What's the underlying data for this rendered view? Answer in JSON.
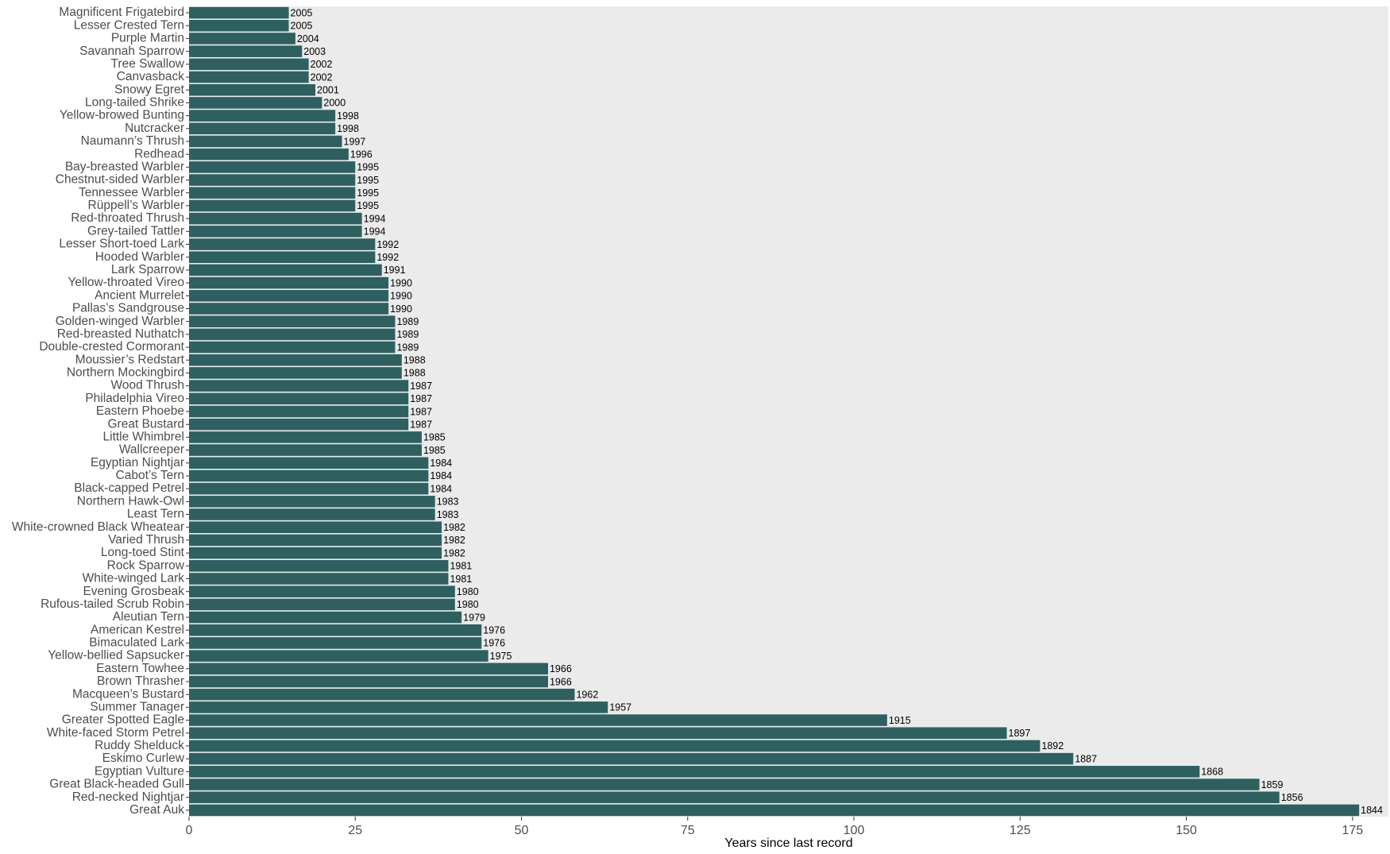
{
  "chart_data": {
    "type": "barh",
    "x_label": "Years since last record",
    "categories": [
      "Magnificent Frigatebird",
      "Lesser Crested Tern",
      "Purple Martin",
      "Savannah Sparrow",
      "Tree Swallow",
      "Canvasback",
      "Snowy Egret",
      "Long-tailed Shrike",
      "Yellow-browed Bunting",
      "Nutcracker",
      "Naumann’s Thrush",
      "Redhead",
      "Bay-breasted Warbler",
      "Chestnut-sided Warbler",
      "Tennessee Warbler",
      "Rüppell’s Warbler",
      "Red-throated Thrush",
      "Grey-tailed Tattler",
      "Lesser Short-toed Lark",
      "Hooded Warbler",
      "Lark Sparrow",
      "Yellow-throated Vireo",
      "Ancient Murrelet",
      "Pallas’s Sandgrouse",
      "Golden-winged Warbler",
      "Red-breasted Nuthatch",
      "Double-crested Cormorant",
      "Moussier’s Redstart",
      "Northern Mockingbird",
      "Wood Thrush",
      "Philadelphia Vireo",
      "Eastern Phoebe",
      "Great Bustard",
      "Little Whimbrel",
      "Wallcreeper",
      "Egyptian Nightjar",
      "Cabot’s Tern",
      "Black-capped Petrel",
      "Northern Hawk-Owl",
      "Least Tern",
      "White-crowned Black Wheatear",
      "Varied Thrush",
      "Long-toed Stint",
      "Rock Sparrow",
      "White-winged Lark",
      "Evening Grosbeak",
      "Rufous-tailed Scrub Robin",
      "Aleutian Tern",
      "American Kestrel",
      "Bimaculated Lark",
      "Yellow-bellied Sapsucker",
      "Eastern Towhee",
      "Brown Thrasher",
      "Macqueen’s Bustard",
      "Summer Tanager",
      "Greater Spotted Eagle",
      "White-faced Storm Petrel",
      "Ruddy Shelduck",
      "Eskimo Curlew",
      "Egyptian Vulture",
      "Great Black-headed Gull",
      "Red-necked Nightjar",
      "Great Auk"
    ],
    "values": [
      15,
      15,
      16,
      17,
      18,
      18,
      19,
      20,
      22,
      22,
      23,
      24,
      25,
      25,
      25,
      25,
      26,
      26,
      28,
      28,
      29,
      30,
      30,
      30,
      31,
      31,
      31,
      32,
      32,
      33,
      33,
      33,
      33,
      35,
      35,
      36,
      36,
      36,
      37,
      37,
      38,
      38,
      38,
      39,
      39,
      40,
      40,
      41,
      44,
      44,
      45,
      54,
      54,
      58,
      63,
      105,
      123,
      128,
      133,
      152,
      161,
      164,
      176
    ],
    "last_record_years": [
      2005,
      2005,
      2004,
      2003,
      2002,
      2002,
      2001,
      2000,
      1998,
      1998,
      1997,
      1996,
      1995,
      1995,
      1995,
      1995,
      1994,
      1994,
      1992,
      1992,
      1991,
      1990,
      1990,
      1990,
      1989,
      1989,
      1989,
      1988,
      1988,
      1987,
      1987,
      1987,
      1987,
      1985,
      1985,
      1984,
      1984,
      1984,
      1983,
      1983,
      1982,
      1982,
      1982,
      1981,
      1981,
      1980,
      1980,
      1979,
      1976,
      1976,
      1975,
      1966,
      1966,
      1962,
      1957,
      1915,
      1897,
      1892,
      1887,
      1868,
      1859,
      1856,
      1844
    ],
    "color": "#2f6060",
    "xlim": [
      0,
      180.4
    ],
    "xticks": [
      0,
      25,
      50,
      75,
      100,
      125,
      150,
      175
    ],
    "grid": false
  }
}
